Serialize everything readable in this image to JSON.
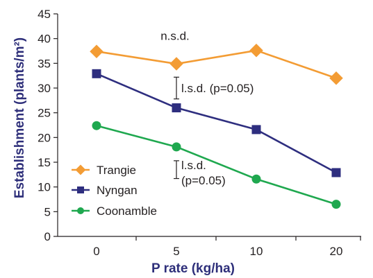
{
  "chart_data": {
    "type": "line",
    "categories": [
      "0",
      "5",
      "10",
      "20"
    ],
    "xlabel": "P rate (kg/ha)",
    "ylabel": "Establishment (plants/m²)",
    "ylim": [
      0,
      45
    ],
    "yticks": [
      "0",
      "5",
      "10",
      "15",
      "20",
      "25",
      "30",
      "35",
      "40",
      "45"
    ],
    "grid": false,
    "legend_position": "lower-left",
    "series": [
      {
        "name": "Trangie",
        "values": [
          37.4,
          34.9,
          37.6,
          32.0
        ],
        "color": "#f39c34",
        "marker": "diamond"
      },
      {
        "name": "Nyngan",
        "values": [
          32.9,
          26.0,
          21.6,
          12.9
        ],
        "color": "#2e2e7f",
        "marker": "square"
      },
      {
        "name": "Coonamble",
        "values": [
          22.4,
          18.1,
          11.6,
          6.5
        ],
        "color": "#1fa84f",
        "marker": "circle"
      }
    ],
    "annotations": [
      {
        "text": "n.s.d.",
        "at_category": "5",
        "y": 40.6
      },
      {
        "text": "l.s.d. (p=0.05)",
        "at_category": "5",
        "y_low": 27.8,
        "y_high": 32.2
      },
      {
        "text": "l.s.d.",
        "text2": "(p=0.05)",
        "at_category": "5",
        "y_low": 11.7,
        "y_high": 15.3
      }
    ]
  }
}
